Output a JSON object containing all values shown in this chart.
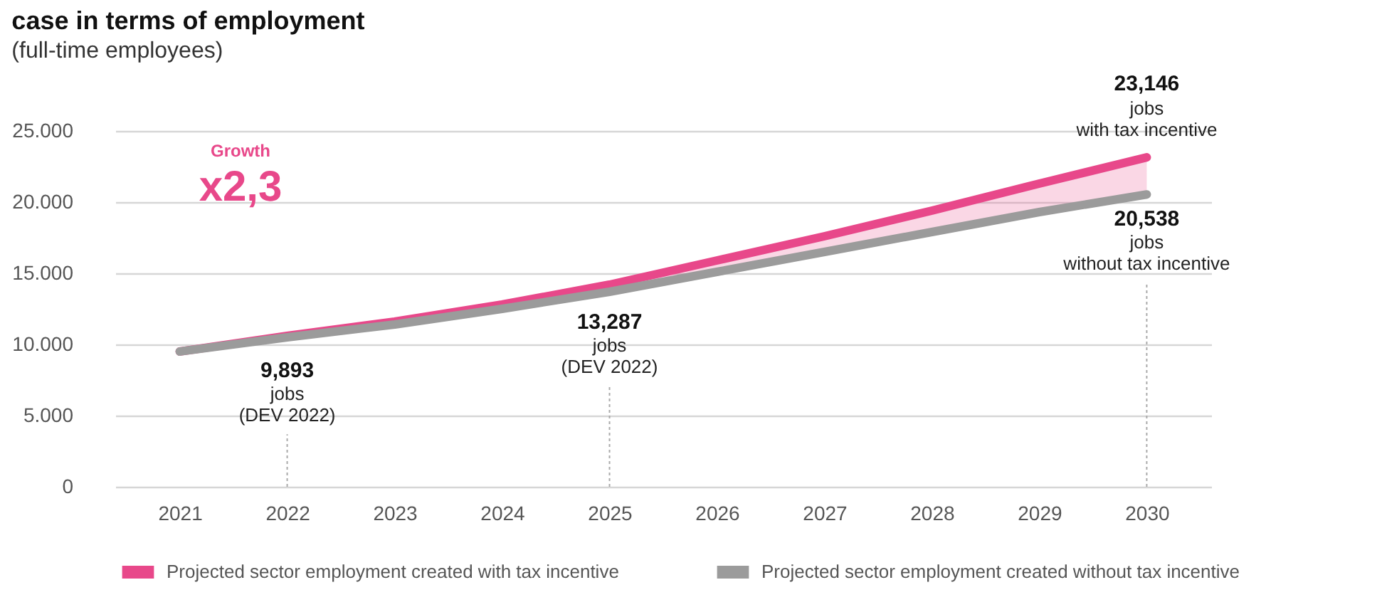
{
  "chart_data": {
    "type": "line",
    "title": "case in terms of employment",
    "subtitle": "(full-time employees)",
    "categories": [
      "2021",
      "2022",
      "2023",
      "2024",
      "2025",
      "2026",
      "2027",
      "2028",
      "2029",
      "2030"
    ],
    "series": [
      {
        "name": "Projected sector employment created with tax incentive",
        "color": "#e8488a",
        "values": [
          9500,
          10600,
          11600,
          12800,
          14200,
          15900,
          17600,
          19400,
          21300,
          23146
        ],
        "lower": [
          9500,
          10500,
          11400,
          12500,
          13700,
          15100,
          16500,
          17900,
          19300,
          20538
        ],
        "upper": [
          9500,
          10600,
          11600,
          12800,
          14200,
          15900,
          17600,
          19400,
          21300,
          23146
        ]
      },
      {
        "name": "Projected sector employment created without tax incentive",
        "color": "#9b9b9b",
        "values": [
          9500,
          10500,
          11400,
          12500,
          13700,
          15100,
          16500,
          17900,
          19300,
          20538
        ]
      }
    ],
    "ylim": [
      0,
      25000
    ],
    "yticks": [
      {
        "value": 0,
        "label": "0"
      },
      {
        "value": 5000,
        "label": "5.000"
      },
      {
        "value": 10000,
        "label": "10.000"
      },
      {
        "value": 15000,
        "label": "15.000"
      },
      {
        "value": 20000,
        "label": "20.000"
      },
      {
        "value": 25000,
        "label": "25.000"
      }
    ],
    "grid": "y",
    "legend": "bottom",
    "marker": "none",
    "line_style": "solid",
    "annotations": [
      "Growth",
      "x2,3",
      {
        "text": "9,893",
        "x": "2022",
        "y": 9893
      },
      "jobs",
      "(DEV 2022)",
      {
        "text": "13,287",
        "x": "2025",
        "y": 13287
      },
      "jobs",
      "(DEV 2022)",
      {
        "text": "23,146",
        "x": "2030",
        "y": 23146
      },
      "jobs",
      "with tax incentive",
      {
        "text": "20,538",
        "x": "2030",
        "y": 20538
      },
      "jobs",
      "without tax incentive"
    ]
  }
}
